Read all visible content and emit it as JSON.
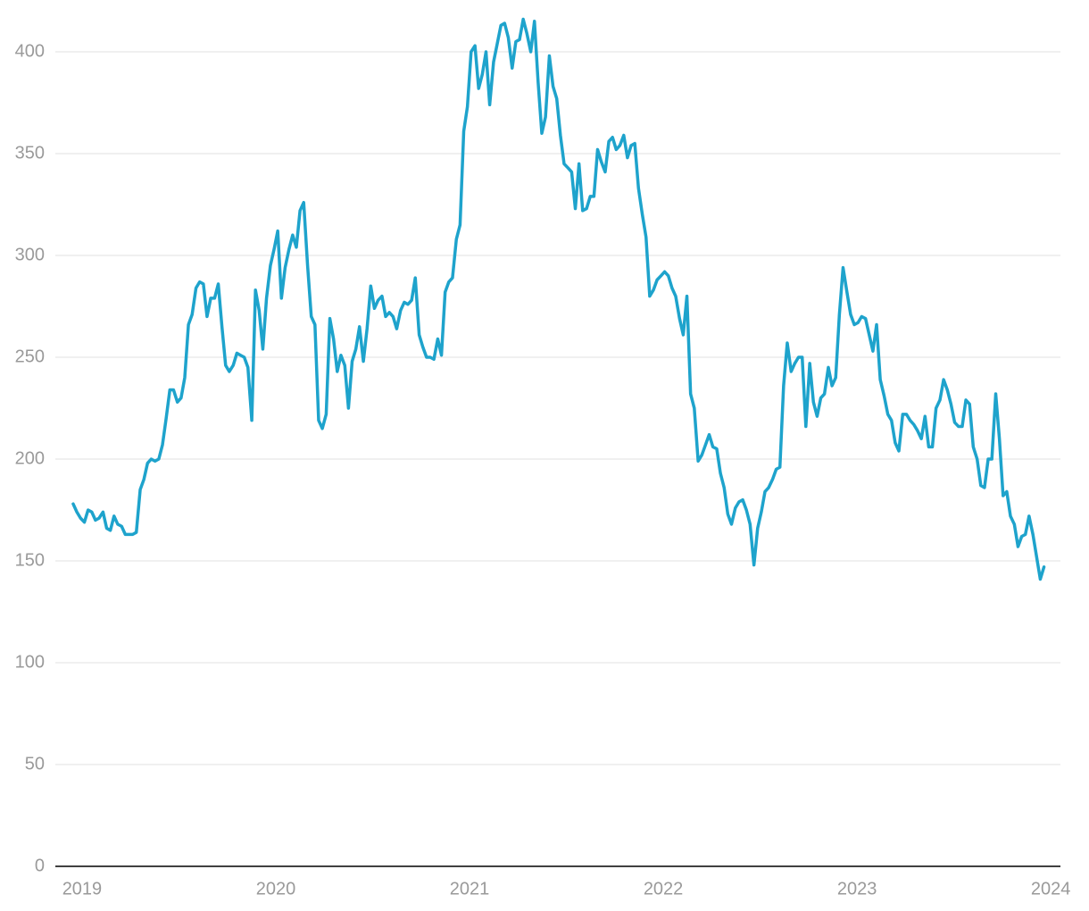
{
  "chart_data": {
    "type": "line",
    "x": [
      2018.954,
      2018.973,
      2018.992,
      2019.012,
      2019.031,
      2019.05,
      2019.069,
      2019.088,
      2019.108,
      2019.127,
      2019.146,
      2019.165,
      2019.184,
      2019.204,
      2019.223,
      2019.242,
      2019.261,
      2019.28,
      2019.3,
      2019.319,
      2019.338,
      2019.357,
      2019.376,
      2019.396,
      2019.415,
      2019.434,
      2019.453,
      2019.472,
      2019.492,
      2019.511,
      2019.53,
      2019.549,
      2019.568,
      2019.588,
      2019.607,
      2019.626,
      2019.645,
      2019.664,
      2019.684,
      2019.703,
      2019.722,
      2019.741,
      2019.76,
      2019.78,
      2019.799,
      2019.818,
      2019.837,
      2019.856,
      2019.876,
      2019.895,
      2019.914,
      2019.933,
      2019.952,
      2019.972,
      2019.991,
      2020.01,
      2020.029,
      2020.048,
      2020.068,
      2020.087,
      2020.106,
      2020.125,
      2020.144,
      2020.164,
      2020.183,
      2020.202,
      2020.221,
      2020.24,
      2020.26,
      2020.279,
      2020.298,
      2020.317,
      2020.336,
      2020.356,
      2020.375,
      2020.394,
      2020.413,
      2020.432,
      2020.452,
      2020.471,
      2020.49,
      2020.509,
      2020.528,
      2020.548,
      2020.567,
      2020.586,
      2020.605,
      2020.624,
      2020.644,
      2020.663,
      2020.682,
      2020.701,
      2020.72,
      2020.74,
      2020.759,
      2020.778,
      2020.797,
      2020.816,
      2020.836,
      2020.855,
      2020.874,
      2020.893,
      2020.912,
      2020.932,
      2020.951,
      2020.97,
      2020.989,
      2021.008,
      2021.028,
      2021.047,
      2021.066,
      2021.085,
      2021.104,
      2021.124,
      2021.143,
      2021.162,
      2021.181,
      2021.2,
      2021.22,
      2021.239,
      2021.258,
      2021.277,
      2021.296,
      2021.316,
      2021.335,
      2021.354,
      2021.373,
      2021.392,
      2021.412,
      2021.431,
      2021.45,
      2021.469,
      2021.488,
      2021.508,
      2021.527,
      2021.546,
      2021.565,
      2021.584,
      2021.604,
      2021.623,
      2021.642,
      2021.661,
      2021.68,
      2021.7,
      2021.719,
      2021.738,
      2021.757,
      2021.776,
      2021.796,
      2021.815,
      2021.834,
      2021.853,
      2021.872,
      2021.892,
      2021.911,
      2021.93,
      2021.949,
      2021.968,
      2021.988,
      2022.007,
      2022.026,
      2022.045,
      2022.064,
      2022.084,
      2022.103,
      2022.122,
      2022.141,
      2022.16,
      2022.18,
      2022.199,
      2022.218,
      2022.237,
      2022.256,
      2022.276,
      2022.295,
      2022.314,
      2022.333,
      2022.352,
      2022.372,
      2022.391,
      2022.41,
      2022.429,
      2022.448,
      2022.468,
      2022.487,
      2022.506,
      2022.525,
      2022.544,
      2022.564,
      2022.583,
      2022.602,
      2022.621,
      2022.64,
      2022.66,
      2022.679,
      2022.698,
      2022.717,
      2022.736,
      2022.756,
      2022.775,
      2022.794,
      2022.813,
      2022.832,
      2022.852,
      2022.871,
      2022.89,
      2022.909,
      2022.928,
      2022.948,
      2022.967,
      2022.986,
      2023.005,
      2023.024,
      2023.044,
      2023.063,
      2023.082,
      2023.101,
      2023.12,
      2023.14,
      2023.159,
      2023.178,
      2023.197,
      2023.216,
      2023.236,
      2023.255,
      2023.274,
      2023.293,
      2023.312,
      2023.332,
      2023.351,
      2023.37,
      2023.389,
      2023.408,
      2023.428,
      2023.447,
      2023.466,
      2023.485,
      2023.504,
      2023.524,
      2023.543,
      2023.562,
      2023.581,
      2023.6,
      2023.62,
      2023.639,
      2023.658,
      2023.677,
      2023.696,
      2023.716,
      2023.735,
      2023.754,
      2023.773,
      2023.792,
      2023.812,
      2023.831,
      2023.85,
      2023.869,
      2023.888,
      2023.908,
      2023.927,
      2023.946,
      2023.965
    ],
    "values": [
      178,
      174,
      171,
      169,
      175,
      174,
      170,
      171,
      174,
      166,
      165,
      172,
      168,
      167,
      163,
      163,
      163,
      164,
      185,
      190,
      198,
      200,
      199,
      200,
      207,
      220,
      234,
      234,
      228,
      230,
      240,
      266,
      271,
      284,
      287,
      286,
      270,
      279,
      279,
      286,
      265,
      246,
      243,
      246,
      252,
      251,
      250,
      245,
      219,
      283,
      273,
      254,
      279,
      295,
      303,
      312,
      279,
      294,
      303,
      310,
      304,
      322,
      326,
      295,
      270,
      266,
      219,
      215,
      222,
      269,
      259,
      243,
      251,
      246,
      225,
      248,
      254,
      265,
      248,
      264,
      285,
      274,
      278,
      280,
      270,
      272,
      270,
      264,
      273,
      277,
      276,
      278,
      289,
      261,
      255,
      250,
      250,
      249,
      259,
      251,
      282,
      287,
      289,
      308,
      315,
      361,
      373,
      400,
      403,
      382,
      389,
      400,
      374,
      395,
      404,
      413,
      414,
      407,
      392,
      405,
      406,
      416,
      409,
      400,
      415,
      385,
      360,
      368,
      398,
      383,
      377,
      359,
      345,
      343,
      341,
      323,
      345,
      322,
      323,
      329,
      329,
      352,
      346,
      341,
      356,
      358,
      352,
      354,
      359,
      348,
      354,
      355,
      333,
      320,
      309,
      280,
      283,
      288,
      290,
      292,
      290,
      284,
      280,
      269,
      261,
      280,
      232,
      225,
      199,
      202,
      207,
      212,
      206,
      205,
      193,
      186,
      173,
      168,
      176,
      179,
      180,
      175,
      168,
      148,
      166,
      174,
      184,
      186,
      190,
      195,
      196,
      236,
      257,
      243,
      247,
      250,
      250,
      216,
      247,
      228,
      221,
      230,
      232,
      245,
      236,
      240,
      271,
      294,
      282,
      271,
      266,
      267,
      270,
      269,
      261,
      253,
      266,
      239,
      231,
      222,
      219,
      208,
      204,
      222,
      222,
      219,
      217,
      214,
      210,
      221,
      206,
      206,
      225,
      229,
      239,
      234,
      227,
      218,
      216,
      216,
      229,
      227,
      206,
      200,
      187,
      186,
      200,
      200,
      232,
      210,
      182,
      184,
      172,
      168,
      157,
      162,
      163,
      172,
      163,
      152,
      141,
      147
    ],
    "color": "#1ea3cc",
    "xlim": [
      2018.862,
      2024.05
    ],
    "xticks": [
      2019,
      2020,
      2021,
      2022,
      2023,
      2024
    ],
    "ylim": [
      0,
      420
    ],
    "yticks": [
      0,
      50,
      100,
      150,
      200,
      250,
      300,
      350,
      400
    ],
    "grid": true
  }
}
